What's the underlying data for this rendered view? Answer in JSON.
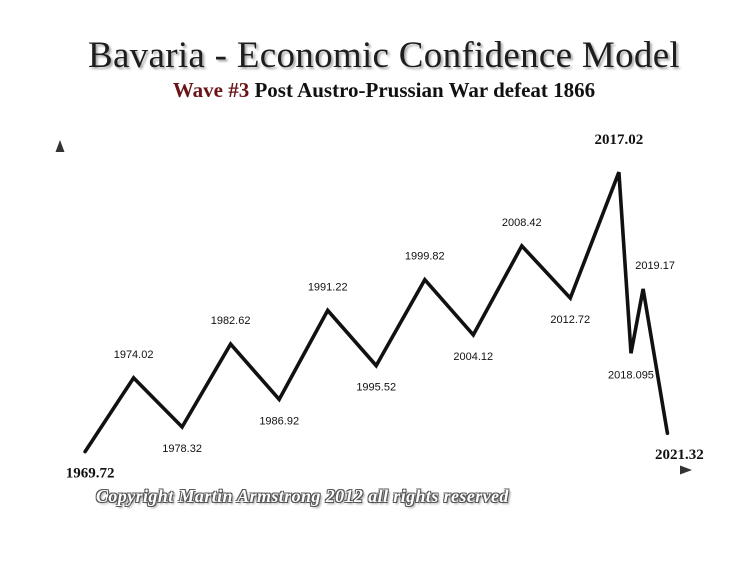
{
  "header": {
    "title": "Bavaria - Economic Confidence Model",
    "subtitle_highlight": "Wave #3",
    "subtitle_rest": " Post Austro-Prussian War defeat 1866"
  },
  "footer": {
    "copyright": "Copyright Martin Armstrong 2012 all rights reserved"
  },
  "colors": {
    "line": "#111111",
    "axis": "#333333",
    "highlight": "#6b1418"
  },
  "chart_data": {
    "type": "line",
    "title": "Bavaria - Economic Confidence Model",
    "subtitle": "Wave #3 Post Austro-Prussian War defeat 1866",
    "xlabel": "",
    "ylabel": "",
    "x_range": [
      1967.5,
      2023.5
    ],
    "y_range": [
      0,
      100
    ],
    "grid": false,
    "legend": false,
    "points": [
      {
        "label": "1969.72",
        "x": 1969.72,
        "y": 6,
        "type": "start"
      },
      {
        "label": "1974.02",
        "x": 1974.02,
        "y": 30,
        "type": "peak"
      },
      {
        "label": "1978.32",
        "x": 1978.32,
        "y": 14,
        "type": "trough"
      },
      {
        "label": "1982.62",
        "x": 1982.62,
        "y": 41,
        "type": "peak"
      },
      {
        "label": "1986.92",
        "x": 1986.92,
        "y": 23,
        "type": "trough"
      },
      {
        "label": "1991.22",
        "x": 1991.22,
        "y": 52,
        "type": "peak"
      },
      {
        "label": "1995.52",
        "x": 1995.52,
        "y": 34,
        "type": "trough"
      },
      {
        "label": "1999.82",
        "x": 1999.82,
        "y": 62,
        "type": "peak"
      },
      {
        "label": "2004.12",
        "x": 2004.12,
        "y": 44,
        "type": "trough"
      },
      {
        "label": "2008.42",
        "x": 2008.42,
        "y": 73,
        "type": "peak"
      },
      {
        "label": "2012.72",
        "x": 2012.72,
        "y": 56,
        "type": "trough"
      },
      {
        "label": "2017.02",
        "x": 2017.02,
        "y": 97,
        "type": "peak"
      },
      {
        "label": "2018.095",
        "x": 2018.095,
        "y": 38,
        "type": "trough"
      },
      {
        "label": "2019.17",
        "x": 2019.17,
        "y": 59,
        "type": "peak"
      },
      {
        "label": "2021.32",
        "x": 2021.32,
        "y": 12,
        "type": "end"
      }
    ]
  }
}
